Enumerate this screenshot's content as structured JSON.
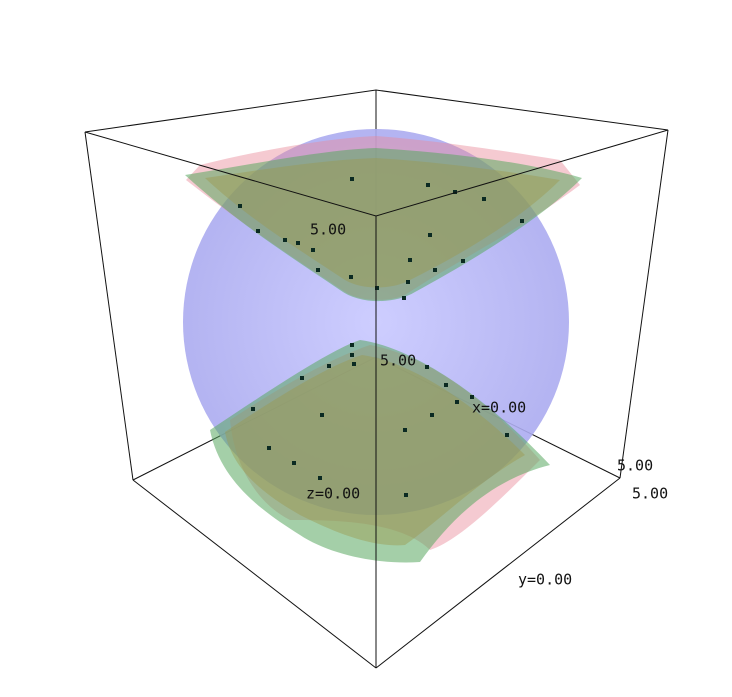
{
  "labels": [
    "5.00",
    "5.00",
    "x=0.00",
    "5.00",
    "5.00",
    "z=0.00",
    "y=0.00"
  ]
}
